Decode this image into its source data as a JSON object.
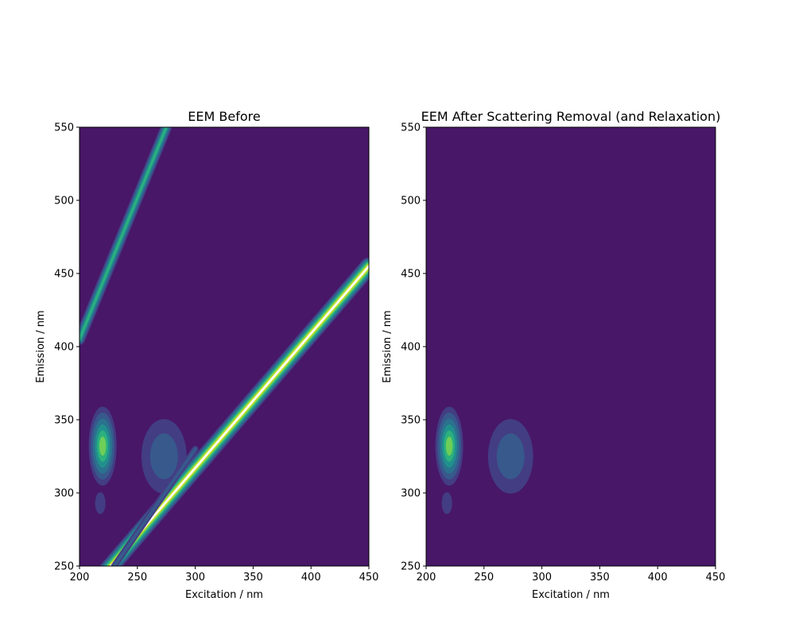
{
  "colors": {
    "background": "#481768",
    "level_1": "#433d84",
    "level_2": "#37598c",
    "level_3": "#2b728e",
    "level_4": "#21908d",
    "level_5": "#2cb17e",
    "level_6": "#6ece58",
    "level_7": "#c5e021",
    "overflow": "#ffffff"
  },
  "chart_data": [
    {
      "type": "heatmap",
      "title": "EEM Before",
      "xlabel": "Excitation / nm",
      "ylabel": "Emission / nm",
      "xlim": [
        200,
        450
      ],
      "ylim": [
        250,
        550
      ],
      "xticks": [
        "200",
        "250",
        "300",
        "350",
        "400",
        "450"
      ],
      "yticks": [
        "250",
        "300",
        "350",
        "400",
        "450",
        "500",
        "550"
      ],
      "features": [
        {
          "kind": "peak",
          "ex": 220,
          "em": 332,
          "ex_sigma": 8,
          "em_sigma": 18,
          "level": 6
        },
        {
          "kind": "peak",
          "ex": 273,
          "em": 325,
          "ex_sigma": 13,
          "em_sigma": 17,
          "level": 2
        },
        {
          "kind": "peak",
          "ex": 218,
          "em": 293,
          "ex_sigma": 3,
          "em_sigma": 5,
          "level": 1
        },
        {
          "kind": "band",
          "name": "Rayleigh first order",
          "ex_start": 200,
          "em_start": 225,
          "ex_end": 450,
          "em_end": 455,
          "level": 8
        },
        {
          "kind": "band",
          "name": "Raman",
          "ex_start": 230,
          "em_start": 250,
          "ex_end": 300,
          "em_end": 330,
          "level": 2
        },
        {
          "kind": "band",
          "name": "Rayleigh second order",
          "ex_start": 200,
          "em_start": 405,
          "ex_end": 275,
          "em_end": 550,
          "level": 5
        }
      ]
    },
    {
      "type": "heatmap",
      "title": "EEM After Scattering Removal (and Relaxation)",
      "xlabel": "Excitation / nm",
      "ylabel": "Emission / nm",
      "xlim": [
        200,
        450
      ],
      "ylim": [
        250,
        550
      ],
      "xticks": [
        "200",
        "250",
        "300",
        "350",
        "400",
        "450"
      ],
      "yticks": [
        "250",
        "300",
        "350",
        "400",
        "450",
        "500",
        "550"
      ],
      "features": [
        {
          "kind": "peak",
          "ex": 220,
          "em": 332,
          "ex_sigma": 8,
          "em_sigma": 18,
          "level": 6
        },
        {
          "kind": "peak",
          "ex": 273,
          "em": 325,
          "ex_sigma": 13,
          "em_sigma": 17,
          "level": 2
        },
        {
          "kind": "peak",
          "ex": 218,
          "em": 293,
          "ex_sigma": 3,
          "em_sigma": 5,
          "level": 1
        }
      ]
    }
  ]
}
